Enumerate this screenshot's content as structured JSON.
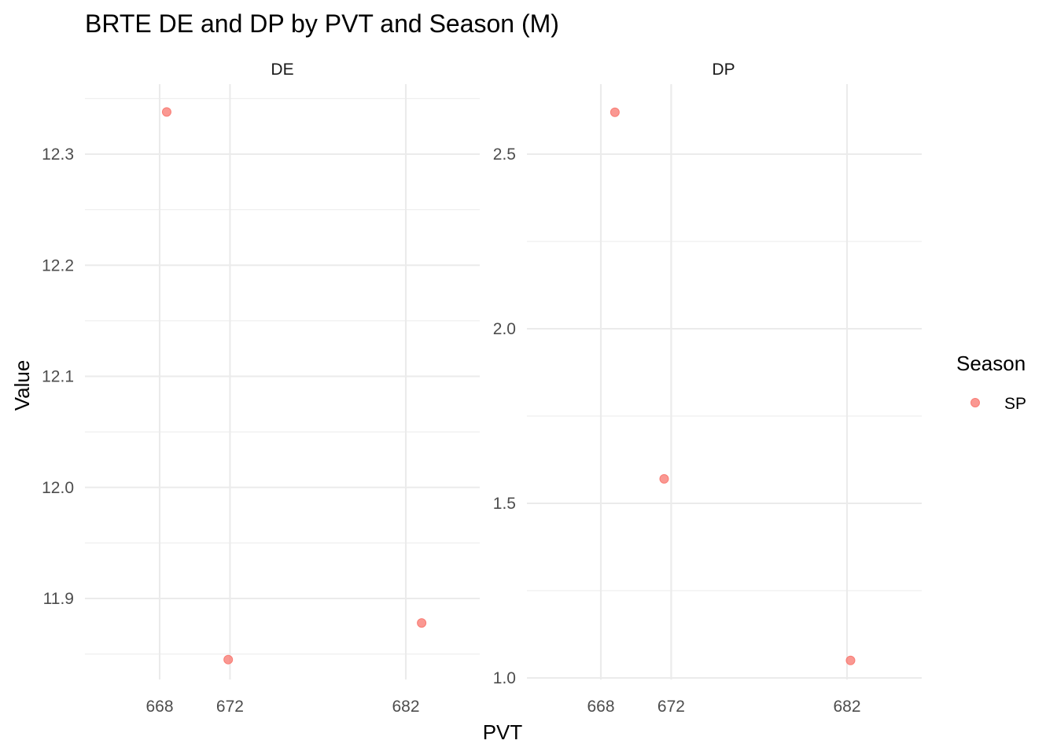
{
  "chart_data": {
    "type": "scatter",
    "title": "BRTE DE and DP by PVT and Season (M)",
    "xlabel": "PVT",
    "ylabel": "Value",
    "legend": {
      "title": "Season",
      "placement": "right",
      "entries": [
        {
          "label": "SP",
          "color": "#F8766D"
        }
      ]
    },
    "grid": true,
    "x_ticks": [
      668,
      672,
      682
    ],
    "x_tick_labels": [
      "668",
      "672",
      "682"
    ],
    "panels": [
      {
        "name": "DE",
        "y_ticks": [
          11.9,
          12.0,
          12.1,
          12.2,
          12.3
        ],
        "y_tick_labels": [
          "11.9",
          "12.0",
          "12.1",
          "12.2",
          "12.3"
        ],
        "series": [
          {
            "name": "SP",
            "x": [
              668.4,
              671.9,
              682.9
            ],
            "y": [
              12.338,
              11.845,
              11.878
            ]
          }
        ]
      },
      {
        "name": "DP",
        "y_ticks": [
          1.0,
          1.5,
          2.0,
          2.5
        ],
        "y_tick_labels": [
          "1.0",
          "1.5",
          "2.0",
          "2.5"
        ],
        "series": [
          {
            "name": "SP",
            "x": [
              668.8,
              671.6,
              682.2
            ],
            "y": [
              2.62,
              1.57,
              1.05
            ]
          }
        ]
      }
    ]
  }
}
